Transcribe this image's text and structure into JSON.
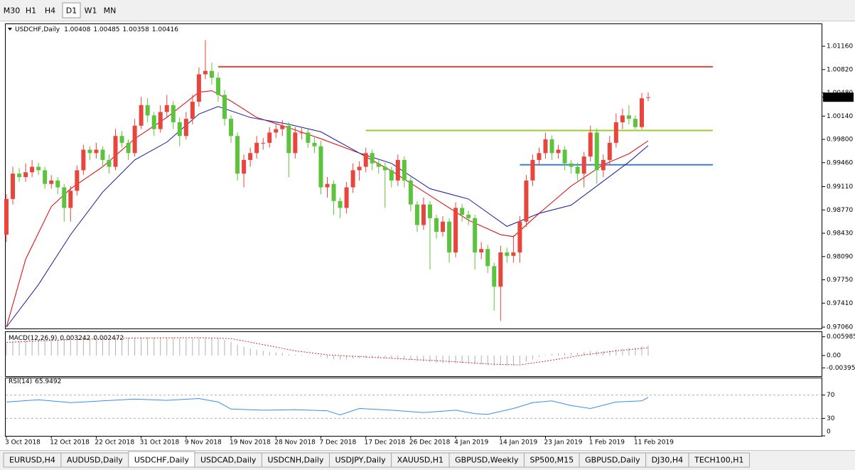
{
  "toolbar": {
    "timeframes": [
      "M30",
      "H1",
      "H4",
      "D1",
      "W1",
      "MN"
    ],
    "active": 3
  },
  "chart_data": [
    {
      "type": "candlestick",
      "title": "USDCHF,Daily",
      "up_color": "#e8453c",
      "down_color": "#5cc43c",
      "candles": [
        [
          0.9841,
          0.99,
          0.983,
          0.9893
        ],
        [
          0.9893,
          0.994,
          0.9885,
          0.993
        ],
        [
          0.993,
          0.9938,
          0.9918,
          0.9925
        ],
        [
          0.9925,
          0.9945,
          0.9918,
          0.9932
        ],
        [
          0.9932,
          0.995,
          0.9925,
          0.994
        ],
        [
          0.994,
          0.9946,
          0.9928,
          0.9935
        ],
        [
          0.9935,
          0.994,
          0.9908,
          0.9915
        ],
        [
          0.9915,
          0.9928,
          0.9908,
          0.992
        ],
        [
          0.992,
          0.9925,
          0.99,
          0.991
        ],
        [
          0.991,
          0.9915,
          0.986,
          0.988
        ],
        [
          0.988,
          0.9912,
          0.986,
          0.9905
        ],
        [
          0.9905,
          0.9942,
          0.9898,
          0.9935
        ],
        [
          0.9935,
          0.9972,
          0.9928,
          0.9965
        ],
        [
          0.9965,
          0.997,
          0.995,
          0.996
        ],
        [
          0.996,
          0.9975,
          0.9952,
          0.9965
        ],
        [
          0.9965,
          0.997,
          0.994,
          0.995
        ],
        [
          0.995,
          0.9958,
          0.993,
          0.994
        ],
        [
          0.994,
          0.9995,
          0.9935,
          0.9985
        ],
        [
          0.9985,
          0.9992,
          0.9968,
          0.9975
        ],
        [
          0.9975,
          0.998,
          0.995,
          0.996
        ],
        [
          0.996,
          1.001,
          0.9955,
          1.0
        ],
        [
          1.0,
          1.0042,
          0.9995,
          1.003
        ],
        [
          1.003,
          1.004,
          1.0005,
          1.0015
        ],
        [
          1.0015,
          1.002,
          0.9985,
          0.9995
        ],
        [
          0.9995,
          1.003,
          0.999,
          1.002
        ],
        [
          1.002,
          1.0045,
          1.0012,
          1.003
        ],
        [
          1.003,
          1.0036,
          0.9995,
          1.0005
        ],
        [
          1.0005,
          1.0012,
          0.997,
          0.9985
        ],
        [
          0.9985,
          1.002,
          0.998,
          1.001
        ],
        [
          1.001,
          1.0045,
          1.0002,
          1.0035
        ],
        [
          1.0035,
          1.0085,
          1.0028,
          1.0075
        ],
        [
          1.0075,
          1.0125,
          1.0068,
          1.008
        ],
        [
          1.008,
          1.0092,
          1.006,
          1.007
        ],
        [
          1.007,
          1.0078,
          1.0035,
          1.0045
        ],
        [
          1.0045,
          1.0052,
          1.0,
          1.001
        ],
        [
          1.001,
          1.0015,
          0.9975,
          0.9985
        ],
        [
          0.9985,
          0.999,
          0.992,
          0.993
        ],
        [
          0.993,
          0.9958,
          0.991,
          0.995
        ],
        [
          0.995,
          0.9968,
          0.994,
          0.996
        ],
        [
          0.996,
          0.9985,
          0.9952,
          0.9975
        ],
        [
          0.9975,
          0.9982,
          0.9965,
          0.9975
        ],
        [
          0.9975,
          0.9998,
          0.9968,
          0.999
        ],
        [
          0.999,
          1.0002,
          0.9982,
          0.9995
        ],
        [
          0.9995,
          1.0008,
          0.9985,
          1.0
        ],
        [
          1.0,
          1.0005,
          0.9925,
          0.996
        ],
        [
          0.996,
          0.9998,
          0.9952,
          0.999
        ],
        [
          0.999,
          0.9998,
          0.998,
          0.999
        ],
        [
          0.999,
          0.9995,
          0.9968,
          0.9975
        ],
        [
          0.9975,
          0.9985,
          0.996,
          0.997
        ],
        [
          0.997,
          0.9978,
          0.99,
          0.991
        ],
        [
          0.991,
          0.9925,
          0.9895,
          0.9915
        ],
        [
          0.9915,
          0.992,
          0.987,
          0.989
        ],
        [
          0.989,
          0.9895,
          0.9865,
          0.988
        ],
        [
          0.988,
          0.9918,
          0.9872,
          0.991
        ],
        [
          0.991,
          0.9945,
          0.9902,
          0.9935
        ],
        [
          0.9935,
          0.9948,
          0.992,
          0.994
        ],
        [
          0.994,
          0.9968,
          0.9932,
          0.996
        ],
        [
          0.996,
          0.9965,
          0.9935,
          0.9945
        ],
        [
          0.9945,
          0.995,
          0.993,
          0.994
        ],
        [
          0.994,
          0.9946,
          0.988,
          0.9935
        ],
        [
          0.9935,
          0.994,
          0.991,
          0.992
        ],
        [
          0.992,
          0.9958,
          0.9912,
          0.995
        ],
        [
          0.995,
          0.9955,
          0.991,
          0.992
        ],
        [
          0.992,
          0.9925,
          0.9875,
          0.9885
        ],
        [
          0.9885,
          0.989,
          0.9845,
          0.9855
        ],
        [
          0.9855,
          0.9895,
          0.9848,
          0.9885
        ],
        [
          0.9885,
          0.989,
          0.979,
          0.9865
        ],
        [
          0.9865,
          0.987,
          0.9835,
          0.9845
        ],
        [
          0.9845,
          0.9868,
          0.9838,
          0.986
        ],
        [
          0.986,
          0.9865,
          0.98,
          0.9815
        ],
        [
          0.9815,
          0.9888,
          0.9808,
          0.988
        ],
        [
          0.988,
          0.9886,
          0.986,
          0.987
        ],
        [
          0.987,
          0.9876,
          0.9855,
          0.9865
        ],
        [
          0.9865,
          0.987,
          0.979,
          0.9815
        ],
        [
          0.9815,
          0.983,
          0.9805,
          0.982
        ],
        [
          0.982,
          0.9826,
          0.9785,
          0.9795
        ],
        [
          0.9795,
          0.98,
          0.973,
          0.9765
        ],
        [
          0.9765,
          0.9825,
          0.9715,
          0.9815
        ],
        [
          0.9815,
          0.9822,
          0.98,
          0.981
        ],
        [
          0.981,
          0.984,
          0.98,
          0.9815
        ],
        [
          0.9815,
          0.9868,
          0.98,
          0.986
        ],
        [
          0.986,
          0.9928,
          0.9852,
          0.992
        ],
        [
          0.992,
          0.9958,
          0.9912,
          0.995
        ],
        [
          0.995,
          0.9968,
          0.9942,
          0.996
        ],
        [
          0.996,
          0.999,
          0.9952,
          0.998
        ],
        [
          0.998,
          0.9986,
          0.995,
          0.996
        ],
        [
          0.996,
          0.9972,
          0.9952,
          0.9965
        ],
        [
          0.9965,
          0.997,
          0.9935,
          0.9945
        ],
        [
          0.9945,
          0.995,
          0.993,
          0.994
        ],
        [
          0.994,
          0.9946,
          0.992,
          0.993
        ],
        [
          0.993,
          0.9962,
          0.991,
          0.9955
        ],
        [
          0.9955,
          1.0,
          0.9948,
          0.999
        ],
        [
          0.999,
          0.9996,
          0.9915,
          0.9935
        ],
        [
          0.9935,
          0.9958,
          0.9925,
          0.995
        ],
        [
          0.995,
          0.9985,
          0.9942,
          0.9975
        ],
        [
          0.9975,
          1.0018,
          0.9968,
          1.0005
        ],
        [
          1.0005,
          1.0025,
          0.9995,
          1.0015
        ],
        [
          1.0015,
          1.003,
          1.0002,
          1.001
        ],
        [
          1.001,
          1.0015,
          0.9995,
          0.9998
        ],
        [
          0.9998,
          1.0048,
          0.9995,
          1.004
        ],
        [
          1.00408,
          1.00485,
          1.00358,
          1.00416
        ]
      ],
      "series": [
        {
          "color": "#e00000",
          "x": [
            0,
            3,
            7,
            10,
            15,
            20,
            25,
            30,
            32,
            35,
            39,
            44,
            49,
            55,
            60,
            66,
            72,
            77,
            79,
            83,
            88,
            93,
            97,
            100
          ],
          "values": [
            0.9706,
            0.9805,
            0.9882,
            0.9908,
            0.994,
            0.9981,
            1.0012,
            1.0049,
            1.0051,
            1.0036,
            1.0012,
            0.9997,
            0.9981,
            0.996,
            0.9934,
            0.9898,
            0.9862,
            0.9841,
            0.9838,
            0.9872,
            0.9912,
            0.9943,
            0.9959,
            0.9978
          ]
        },
        {
          "color": "#1a1aa0",
          "x": [
            0,
            5,
            10,
            15,
            20,
            25,
            30,
            33,
            38,
            44,
            49,
            55,
            60,
            66,
            72,
            78,
            83,
            88,
            93,
            97,
            100
          ],
          "values": [
            0.9706,
            0.9768,
            0.9841,
            0.9903,
            0.995,
            0.9976,
            1.0017,
            1.0028,
            1.0012,
            1.0002,
            0.9991,
            0.996,
            0.9945,
            0.9908,
            0.9893,
            0.9853,
            0.9872,
            0.9884,
            0.9919,
            0.9947,
            0.9971
          ]
        }
      ],
      "levels": [
        {
          "value": 1.0086,
          "from": 33,
          "color": "#e8453c"
        },
        {
          "value": 0.9993,
          "from": 56,
          "color": "#9acd32"
        },
        {
          "value": 0.9943,
          "from": 80,
          "color": "#3a7fd5"
        }
      ],
      "ylim": [
        0.97029,
        1.01482
      ],
      "yticks": [
        {
          "value": 1.0116,
          "label": "1.01160"
        },
        {
          "value": 1.0082,
          "label": "1.00820"
        },
        {
          "value": 1.0048,
          "label": "1.00480"
        },
        {
          "value": 1.0014,
          "label": "1.00140"
        },
        {
          "value": 0.998,
          "label": "0.99800"
        },
        {
          "value": 0.9946,
          "label": "0.99460"
        },
        {
          "value": 0.9911,
          "label": "0.99110"
        },
        {
          "value": 0.9877,
          "label": "0.98770"
        },
        {
          "value": 0.9843,
          "label": "0.98430"
        },
        {
          "value": 0.9809,
          "label": "0.98090"
        },
        {
          "value": 0.9775,
          "label": "0.97750"
        },
        {
          "value": 0.9741,
          "label": "0.97410"
        },
        {
          "value": 0.9706,
          "label": "0.97060"
        }
      ],
      "xticks": [
        {
          "value": 0,
          "label": "3 Oct 2018"
        },
        {
          "value": 7,
          "label": "12 Oct 2018"
        },
        {
          "value": 14,
          "label": "22 Oct 2018"
        },
        {
          "value": 21,
          "label": "31 Oct 2018"
        },
        {
          "value": 28,
          "label": "9 Nov 2018"
        },
        {
          "value": 35,
          "label": "19 Nov 2018"
        },
        {
          "value": 42,
          "label": "28 Nov 2018"
        },
        {
          "value": 49,
          "label": "7 Dec 2018"
        },
        {
          "value": 56,
          "label": "17 Dec 2018"
        },
        {
          "value": 63,
          "label": "26 Dec 2018"
        },
        {
          "value": 70,
          "label": "4 Jan 2019"
        },
        {
          "value": 77,
          "label": "14 Jan 2019"
        },
        {
          "value": 84,
          "label": "23 Jan 2019"
        },
        {
          "value": 91,
          "label": "1 Feb 2019"
        },
        {
          "value": 98,
          "label": "11 Feb 2019"
        }
      ]
    },
    {
      "type": "macd",
      "title": "MACD(12,26,9)",
      "color": "#b0b0b0",
      "values": [
        0.004,
        0.0045,
        0.0048,
        0.005,
        0.0051,
        0.0052,
        0.0052,
        0.0052,
        0.0052,
        0.005,
        0.005,
        0.0052,
        0.0054,
        0.0055,
        0.0056,
        0.0056,
        0.0056,
        0.0057,
        0.0057,
        0.0057,
        0.0058,
        0.0059,
        0.0059,
        0.0058,
        0.0058,
        0.0058,
        0.0057,
        0.0055,
        0.0054,
        0.0055,
        0.0057,
        0.0058,
        0.0057,
        0.0055,
        0.005,
        0.0044,
        0.0035,
        0.0028,
        0.0022,
        0.0018,
        0.0015,
        0.0012,
        0.001,
        0.0008,
        0.0004,
        0.0003,
        0.0002,
        0.0001,
        0.0,
        -0.0005,
        -0.0008,
        -0.0011,
        -0.0013,
        -0.0012,
        -0.001,
        -0.0009,
        -0.0008,
        -0.0008,
        -0.0008,
        -0.0009,
        -0.001,
        -0.001,
        -0.0012,
        -0.0015,
        -0.0018,
        -0.0019,
        -0.0021,
        -0.0023,
        -0.0024,
        -0.0026,
        -0.0025,
        -0.0025,
        -0.0026,
        -0.0028,
        -0.0029,
        -0.0031,
        -0.0033,
        -0.0032,
        -0.0032,
        -0.0031,
        -0.0027,
        -0.002,
        -0.0012,
        -0.0005,
        0.0002,
        0.0005,
        0.0007,
        0.0008,
        0.0009,
        0.0009,
        0.0011,
        0.0015,
        0.0014,
        0.0014,
        0.0016,
        0.0019,
        0.0022,
        0.0024,
        0.0025,
        0.003,
        0.003242
      ],
      "signal": {
        "color": "#d03030",
        "x": [
          0,
          10,
          20,
          30,
          35,
          40,
          45,
          50,
          60,
          70,
          75,
          80,
          85,
          90,
          95,
          100
        ],
        "values": [
          0.0042,
          0.0051,
          0.0056,
          0.0057,
          0.0054,
          0.0035,
          0.0015,
          0.0002,
          -0.0009,
          -0.002,
          -0.0027,
          -0.003,
          -0.0015,
          0.0002,
          0.0015,
          0.002472
        ]
      },
      "ylim": [
        -0.0066,
        0.0075
      ],
      "yticks": [
        0.005985,
        {
          "value": 0,
          "label": "0.00"
        },
        -0.003954
      ]
    },
    {
      "type": "rsi",
      "title": "RSI(14)",
      "color": "#3a8ee6",
      "x": [
        0,
        5,
        10,
        15,
        20,
        25,
        30,
        33,
        35,
        40,
        45,
        50,
        52,
        55,
        60,
        65,
        70,
        73,
        75,
        79,
        82,
        85,
        88,
        91,
        95,
        99,
        100
      ],
      "values": [
        58,
        62,
        57,
        60,
        63,
        61,
        64,
        58,
        46,
        44,
        45,
        43,
        36,
        47,
        44,
        40,
        44,
        38,
        37,
        47,
        57,
        60,
        52,
        47,
        58,
        60,
        65.9492
      ],
      "levels": [
        70,
        30
      ],
      "ylim": [
        0,
        100
      ],
      "yticks": [
        70,
        30,
        0
      ]
    }
  ],
  "tabs": {
    "items": [
      "EURUSD,H4",
      "AUDUSD,Daily",
      "USDCHF,Daily",
      "USDCAD,Daily",
      "USDCNH,Daily",
      "USDJPY,Daily",
      "XAUUSD,H1",
      "GBPUSD,Weekly",
      "SP500,M15",
      "GBPUSD,Daily",
      "DJ30,H4",
      "TECH100,H1"
    ],
    "active": 2
  }
}
